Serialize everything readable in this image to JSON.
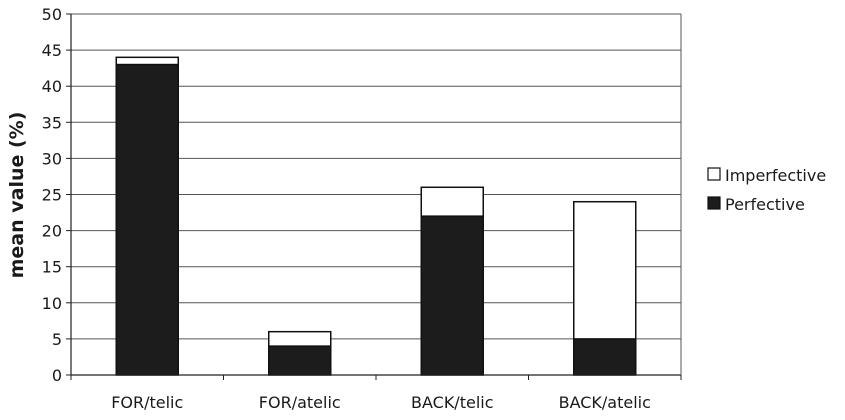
{
  "chart_data": {
    "type": "bar",
    "stacked": true,
    "categories": [
      "FOR/telic",
      "FOR/atelic",
      "BACK/telic",
      "BACK/atelic"
    ],
    "series": [
      {
        "name": "Perfective",
        "values": [
          43,
          4,
          22,
          5
        ],
        "color": "#1c1c1c"
      },
      {
        "name": "Imperfective",
        "values": [
          1,
          2,
          4,
          19
        ],
        "color": "#ffffff"
      }
    ],
    "legend_order": [
      "Imperfective",
      "Perfective"
    ],
    "title": "",
    "xlabel": "",
    "ylabel": "mean value (%)",
    "ylim": [
      0,
      50
    ],
    "yticks": [
      0,
      5,
      10,
      15,
      20,
      25,
      30,
      35,
      40,
      45,
      50
    ],
    "grid": true,
    "legend_position": "right"
  }
}
